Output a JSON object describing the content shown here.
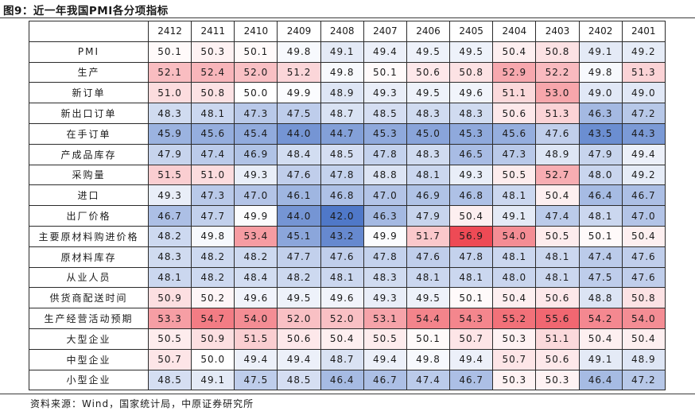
{
  "page": {
    "figure_title": "图9：近一年我国PMI各分项指标",
    "source": "资料来源：Wind，国家统计局，中原证券研究所"
  },
  "colors": {
    "min_color": "#4f78c8",
    "mid_color": "#ffffff",
    "max_color": "#ee4a55"
  },
  "chart_data": {
    "type": "heatmap",
    "title": "图9：近一年我国PMI各分项指标",
    "columns": [
      "2412",
      "2411",
      "2410",
      "2409",
      "2408",
      "2407",
      "2406",
      "2405",
      "2404",
      "2403",
      "2402",
      "2401"
    ],
    "rows": [
      {
        "label": "PMI",
        "values": [
          50.1,
          50.3,
          50.1,
          49.8,
          49.1,
          49.4,
          49.5,
          49.5,
          50.4,
          50.8,
          49.1,
          49.2
        ]
      },
      {
        "label": "生产",
        "values": [
          52.1,
          52.4,
          52.0,
          51.2,
          49.8,
          50.1,
          50.6,
          50.8,
          52.9,
          52.2,
          49.8,
          51.3
        ]
      },
      {
        "label": "新订单",
        "values": [
          51.0,
          50.8,
          50.0,
          49.9,
          48.9,
          49.3,
          49.5,
          49.6,
          51.1,
          53.0,
          49.0,
          49.0
        ]
      },
      {
        "label": "新出口订单",
        "values": [
          48.3,
          48.1,
          47.3,
          47.5,
          48.7,
          48.5,
          48.3,
          48.3,
          50.6,
          51.3,
          46.3,
          47.2
        ]
      },
      {
        "label": "在手订单",
        "values": [
          45.9,
          45.6,
          45.4,
          44.0,
          44.7,
          45.3,
          45.0,
          45.3,
          45.6,
          47.6,
          43.5,
          44.3
        ]
      },
      {
        "label": "产成品库存",
        "values": [
          47.9,
          47.4,
          46.9,
          48.4,
          48.5,
          47.8,
          48.3,
          46.5,
          47.3,
          48.9,
          47.9,
          49.4
        ]
      },
      {
        "label": "采购量",
        "values": [
          51.5,
          51.0,
          49.3,
          47.6,
          47.8,
          48.8,
          48.1,
          49.3,
          50.5,
          52.7,
          48.0,
          49.2
        ]
      },
      {
        "label": "进口",
        "values": [
          49.3,
          47.3,
          47.0,
          46.1,
          46.8,
          47.0,
          46.9,
          46.8,
          48.1,
          50.4,
          46.4,
          46.7
        ]
      },
      {
        "label": "出厂价格",
        "values": [
          46.7,
          47.7,
          49.9,
          44.0,
          42.0,
          46.3,
          47.9,
          50.4,
          49.1,
          47.4,
          48.1,
          47.0
        ]
      },
      {
        "label": "主要原材料购进价格",
        "values": [
          48.2,
          49.8,
          53.4,
          45.1,
          43.2,
          49.9,
          51.7,
          56.9,
          54.0,
          50.5,
          50.1,
          50.4
        ]
      },
      {
        "label": "原材料库存",
        "values": [
          48.3,
          48.2,
          48.2,
          47.7,
          47.6,
          47.8,
          47.6,
          47.8,
          48.1,
          48.1,
          47.4,
          47.6
        ]
      },
      {
        "label": "从业人员",
        "values": [
          48.1,
          48.2,
          48.4,
          48.2,
          48.1,
          48.3,
          48.1,
          48.1,
          48.0,
          48.1,
          47.5,
          47.6
        ]
      },
      {
        "label": "供货商配送时间",
        "values": [
          50.9,
          50.2,
          49.6,
          49.5,
          49.6,
          49.3,
          49.5,
          50.1,
          50.4,
          50.6,
          48.8,
          50.8
        ]
      },
      {
        "label": "生产经营活动预期",
        "values": [
          53.3,
          54.7,
          54.0,
          52.0,
          52.0,
          53.1,
          54.4,
          54.3,
          55.2,
          55.6,
          54.2,
          54.0
        ]
      },
      {
        "label": "大型企业",
        "values": [
          50.5,
          50.9,
          51.5,
          50.6,
          50.4,
          50.5,
          50.1,
          50.7,
          50.3,
          51.1,
          50.4,
          50.4
        ]
      },
      {
        "label": "中型企业",
        "values": [
          50.7,
          50.0,
          49.4,
          49.4,
          48.7,
          49.4,
          49.8,
          49.4,
          50.7,
          50.6,
          49.1,
          48.9
        ]
      },
      {
        "label": "小型企业",
        "values": [
          48.5,
          49.1,
          47.5,
          48.5,
          46.4,
          46.7,
          47.4,
          46.7,
          50.3,
          50.3,
          46.4,
          47.2
        ]
      }
    ]
  }
}
